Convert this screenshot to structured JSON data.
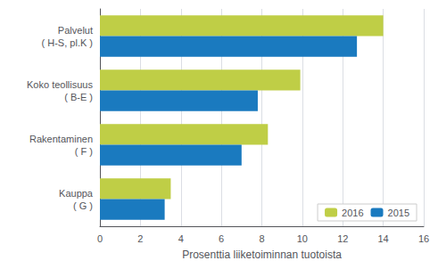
{
  "chart_data": {
    "type": "bar",
    "orientation": "horizontal",
    "categories": [
      "Palvelut\n( H-S, pl.K )",
      "Koko teollisuus\n( B-E )",
      "Rakentaminen\n( F )",
      "Kauppa\n( G )"
    ],
    "series": [
      {
        "name": "2016",
        "color": "#bfce46",
        "values": [
          14.0,
          9.9,
          8.3,
          3.5
        ]
      },
      {
        "name": "2015",
        "color": "#1a7abf",
        "values": [
          12.7,
          7.8,
          7.0,
          3.2
        ]
      }
    ],
    "xlabel": "Prosenttia liiketoiminnan tuotoista",
    "xlim": [
      0,
      16
    ],
    "xticks": [
      0,
      2,
      4,
      6,
      8,
      10,
      12,
      14,
      16
    ],
    "grid": true,
    "legend": "lower right"
  }
}
